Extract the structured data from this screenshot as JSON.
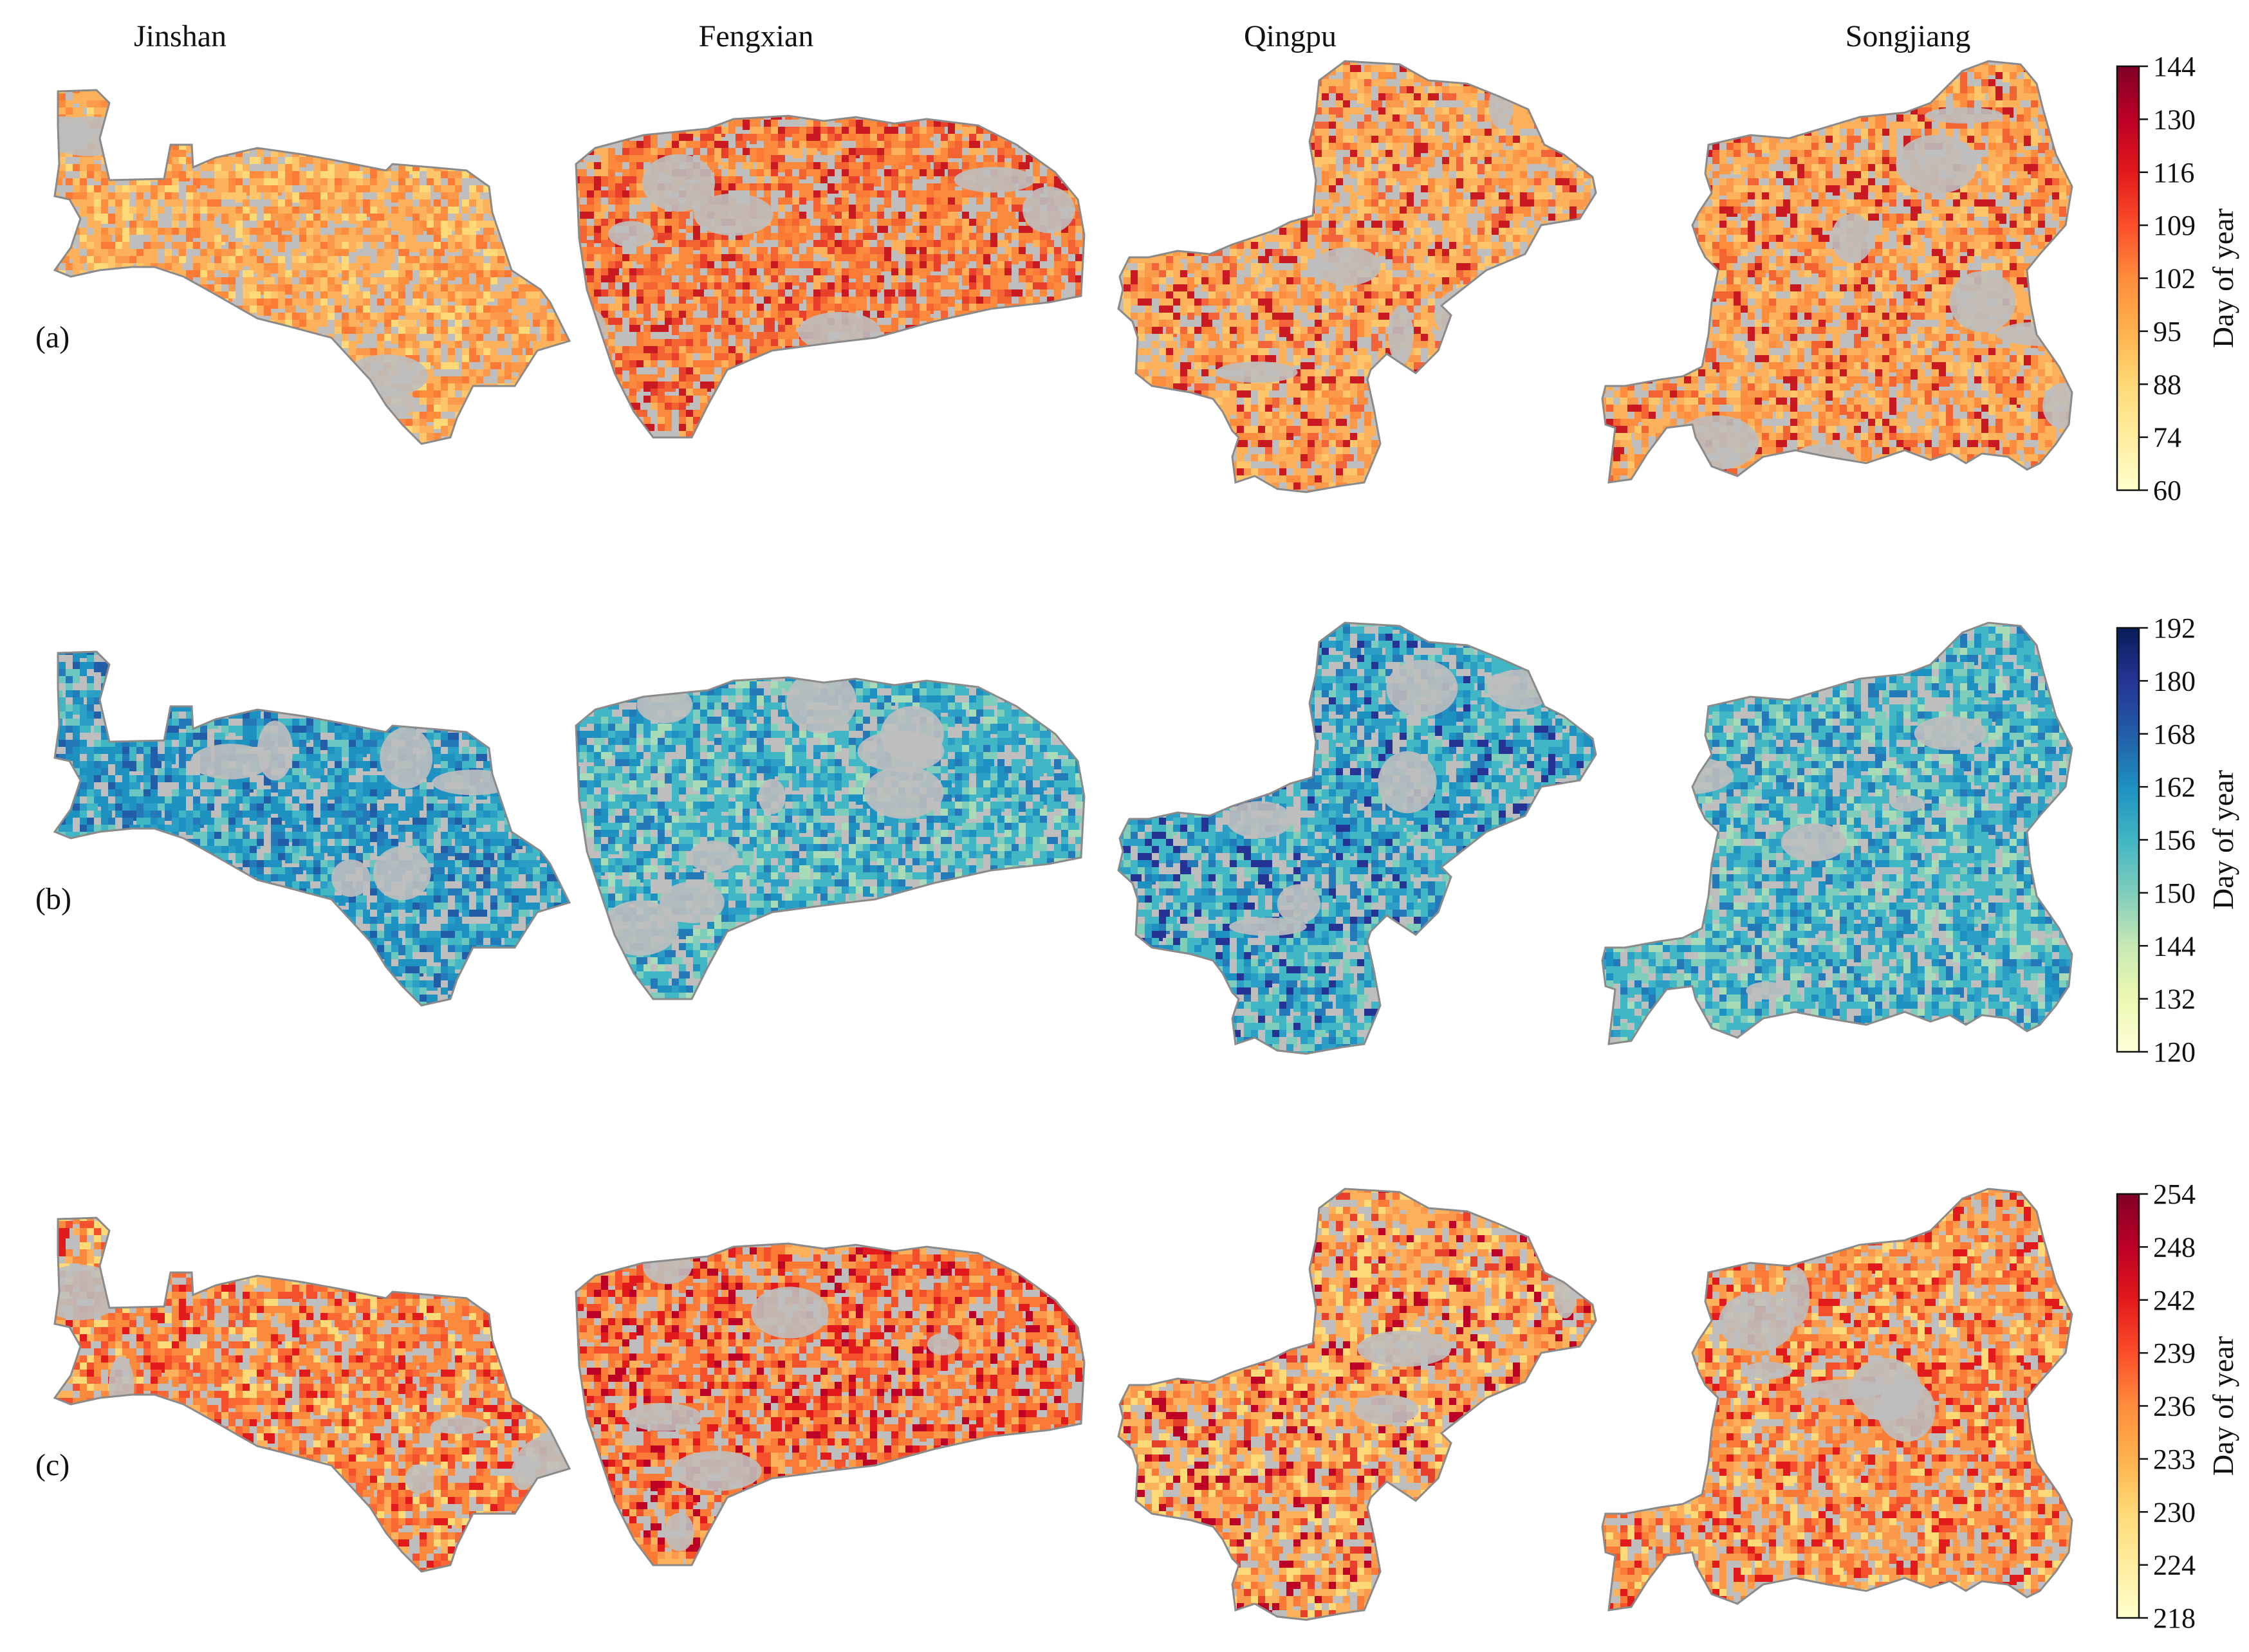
{
  "columns": [
    "Jinshan",
    "Fengxian",
    "Qingpu",
    "Songjiang"
  ],
  "rows": [
    {
      "label": "(a)",
      "colormap": "YlOrRd",
      "colorbar": {
        "label": "Day of year",
        "ticks": [
          "60",
          "74",
          "88",
          "95",
          "102",
          "109",
          "116",
          "130",
          "144"
        ],
        "colors": [
          "#ffffcc",
          "#ffeda0",
          "#fed976",
          "#feb24c",
          "#fd8d3c",
          "#fc4e2a",
          "#e31a1c",
          "#bd0026",
          "#800026"
        ]
      },
      "district_palettes": [
        [
          "#fdb15a",
          "#fc9a4c",
          "#fd8d3c",
          "#fec56a",
          "#fb7a36",
          "#fed978"
        ],
        [
          "#fc8a3c",
          "#fb7a36",
          "#f46432",
          "#fdb15a",
          "#e8402a",
          "#c81a20"
        ],
        [
          "#fdb15a",
          "#fc9a4c",
          "#fec56a",
          "#fd8d3c",
          "#f4643a",
          "#c81a20"
        ],
        [
          "#fdb15a",
          "#fc9a4c",
          "#fd8d3c",
          "#fec56a",
          "#f46432",
          "#c81a20"
        ]
      ]
    },
    {
      "label": "(b)",
      "colormap": "YlGnBu",
      "colorbar": {
        "label": "Day of year",
        "ticks": [
          "120",
          "132",
          "144",
          "150",
          "156",
          "162",
          "168",
          "180",
          "192"
        ],
        "colors": [
          "#ffffd9",
          "#edf8b1",
          "#c7e9b4",
          "#7fcdbb",
          "#41b6c4",
          "#1d91c0",
          "#225ea8",
          "#253494",
          "#081d58"
        ]
      },
      "district_palettes": [
        [
          "#1d91c0",
          "#2c9fc6",
          "#41b6c4",
          "#2479b8",
          "#6cc7c0",
          "#225ea8"
        ],
        [
          "#41b6c4",
          "#2c9fc6",
          "#7fcdbb",
          "#1d91c0",
          "#a8dcb8",
          "#2479b8"
        ],
        [
          "#41b6c4",
          "#2c9fc6",
          "#1d91c0",
          "#7fcdbb",
          "#2479b8",
          "#253494"
        ],
        [
          "#41b6c4",
          "#7fcdbb",
          "#2c9fc6",
          "#a8dcb8",
          "#1d91c0",
          "#2479b8"
        ]
      ]
    },
    {
      "label": "(c)",
      "colormap": "YlOrRd",
      "colorbar": {
        "label": "Day of year",
        "ticks": [
          "218",
          "224",
          "230",
          "233",
          "236",
          "239",
          "242",
          "248",
          "254"
        ],
        "colors": [
          "#ffffcc",
          "#ffeda0",
          "#fed976",
          "#feb24c",
          "#fd8d3c",
          "#fc4e2a",
          "#e31a1c",
          "#bd0026",
          "#800026"
        ]
      },
      "district_palettes": [
        [
          "#fc8a3c",
          "#fb6a34",
          "#fdb15a",
          "#f4502c",
          "#fed978",
          "#e31a1c"
        ],
        [
          "#fb7a36",
          "#f4502c",
          "#fc9a4c",
          "#fdb15a",
          "#e31a1c",
          "#bd0026"
        ],
        [
          "#fdb15a",
          "#fc9a4c",
          "#fed978",
          "#fb7a36",
          "#e8402a",
          "#bd0026"
        ],
        [
          "#fc9a4c",
          "#fb7a36",
          "#fdb15a",
          "#f4502c",
          "#fed978",
          "#e31a1c"
        ]
      ]
    }
  ],
  "colors": {
    "no_data": "#bebebe",
    "outline": "#8a8a8a"
  }
}
